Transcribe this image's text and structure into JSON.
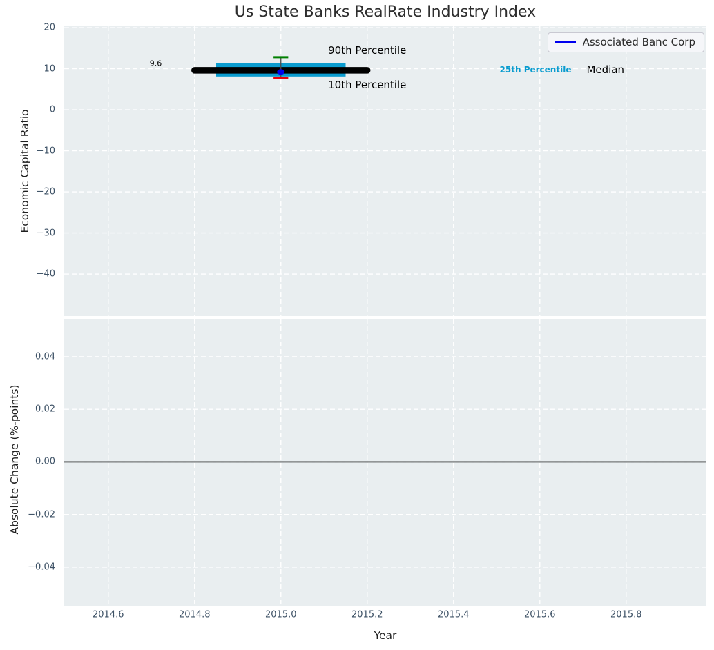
{
  "chart_data": {
    "type": "errorbar",
    "title": "Us State Banks RealRate Industry Index",
    "xlabel": "Year",
    "xlim": [
      2014.498,
      2015.986
    ],
    "x_ticks": [
      2014.6,
      2014.8,
      2015.0,
      2015.2,
      2015.4,
      2015.6,
      2015.8
    ],
    "x_tick_labels": [
      "2014.6",
      "2014.8",
      "2015.0",
      "2015.2",
      "2015.4",
      "2015.6",
      "2015.8"
    ],
    "grid": {
      "on": true,
      "color": "#ffffff",
      "style": "dashed"
    },
    "background_color": "#e9eef0",
    "tick_label_color": "#3e5266",
    "panels": [
      {
        "name": "economic-capital-ratio",
        "ylabel": "Economic Capital Ratio",
        "ylim": [
          -50.25,
          20.34
        ],
        "y_ticks": [
          20,
          10,
          0,
          -10,
          -20,
          -30,
          -40
        ],
        "y_tick_labels": [
          "20",
          "10",
          "0",
          "−10",
          "−20",
          "−30",
          "−40"
        ],
        "marks": {
          "median_line": {
            "label": "Median",
            "value": 9.6,
            "x_start": 2014.8,
            "x_end": 2015.2,
            "color": "#000000"
          },
          "iqr_band": {
            "label": "25th Percentile",
            "low": 8.1,
            "high": 11.3,
            "x_start": 2014.85,
            "x_end": 2015.15,
            "color": "#0a9ccf"
          },
          "whisker": {
            "x": 2015.0,
            "p90": 12.8,
            "p10": 7.7,
            "cap_half_width": 0.017,
            "p90_color": "#008000",
            "p10_color": "#e8000b",
            "line_color": "#4a4a4a"
          },
          "company_point": {
            "label": "Associated Banc Corp",
            "x": 2015.0,
            "value": 9.2,
            "color": "#0000ee"
          }
        },
        "annotations": [
          {
            "id": "median-value",
            "text": "9.6",
            "x": 2014.71,
            "y": 11.3,
            "color": "#000000",
            "size": 11,
            "bold": false
          },
          {
            "id": "p90-label",
            "text": "90th Percentile",
            "x": 2015.2,
            "y": 14.5,
            "color": "#000000",
            "size": 15,
            "bold": false
          },
          {
            "id": "p10-label",
            "text": "10th Percentile",
            "x": 2015.2,
            "y": 6.1,
            "color": "#000000",
            "size": 15,
            "bold": false
          },
          {
            "id": "p25-label",
            "text": "25th Percentile",
            "x": 2015.59,
            "y": 9.8,
            "color": "#0a9ccf",
            "size": 12,
            "bold": true
          },
          {
            "id": "median-label",
            "text": "Median",
            "x": 2015.752,
            "y": 9.8,
            "color": "#000000",
            "size": 15,
            "bold": false
          }
        ],
        "legend": {
          "label": "Associated Banc Corp",
          "line_color": "#0000ee",
          "position": "upper right"
        }
      },
      {
        "name": "absolute-change",
        "ylabel": "Absolute Change (%-points)",
        "ylim": [
          -0.0547,
          0.0544
        ],
        "y_ticks": [
          0.04,
          0.02,
          0.0,
          -0.02,
          -0.04
        ],
        "y_tick_labels": [
          "0.04",
          "0.02",
          "0.00",
          "−0.02",
          "−0.04"
        ],
        "marks": {
          "zero_line": {
            "value": 0.0,
            "color": "#000000"
          }
        },
        "annotations": []
      }
    ]
  }
}
